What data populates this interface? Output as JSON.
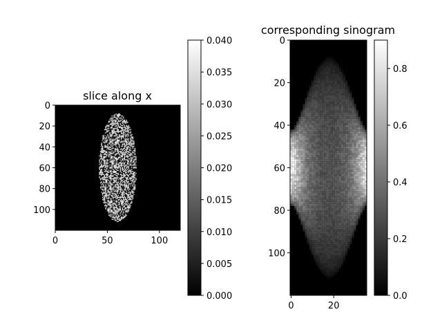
{
  "chart_data": [
    {
      "type": "heatmap",
      "title": "slice along x",
      "xlabel": "",
      "ylabel": "",
      "xlim": [
        0,
        120
      ],
      "ylim": [
        120,
        0
      ],
      "x_ticks": [
        "0",
        "50",
        "100"
      ],
      "y_ticks": [
        "0",
        "20",
        "40",
        "60",
        "80",
        "100"
      ],
      "colormap": "gray",
      "description_of_values": {
        "ellipse_center": [
          60,
          60
        ],
        "ellipse_semi_axes": [
          18,
          52
        ],
        "noise_in_ellipse": true,
        "outside_value": 0.0
      },
      "colorbar": {
        "range": [
          0.0,
          0.04
        ],
        "ticks": [
          "0.000",
          "0.005",
          "0.010",
          "0.015",
          "0.020",
          "0.025",
          "0.030",
          "0.035",
          "0.040"
        ]
      }
    },
    {
      "type": "heatmap",
      "title": "corresponding sinogram",
      "xlabel": "",
      "ylabel": "",
      "xlim": [
        0,
        36
      ],
      "ylim": [
        120,
        0
      ],
      "x_ticks": [
        "0",
        "20"
      ],
      "y_ticks": [
        "0",
        "20",
        "40",
        "60",
        "80",
        "100"
      ],
      "colormap": "gray",
      "colorbar": {
        "range": [
          0.0,
          0.9
        ],
        "ticks": [
          "0.0",
          "0.2",
          "0.4",
          "0.6",
          "0.8"
        ]
      }
    }
  ],
  "colors": {
    "background": "#ffffff",
    "axes": "#000000"
  }
}
